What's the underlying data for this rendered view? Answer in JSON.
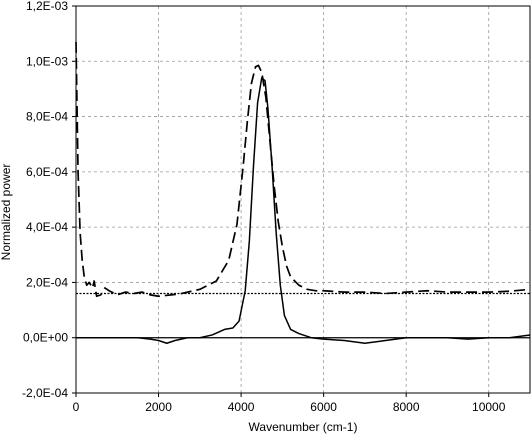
{
  "chart_data": {
    "type": "line",
    "title": "",
    "xlabel": "Wavenumber (cm-1)",
    "ylabel": "Normalized power",
    "xlim": [
      0,
      11000
    ],
    "ylim": [
      -0.0002,
      0.0012
    ],
    "grid": true,
    "legend": "none",
    "x_ticks": [
      0,
      2000,
      4000,
      6000,
      8000,
      10000
    ],
    "x_tick_labels": [
      "0",
      "2000",
      "4000",
      "6000",
      "8000",
      "10000"
    ],
    "y_ticks": [
      -0.0002,
      0.0,
      0.0002,
      0.0004,
      0.0006,
      0.0008,
      0.001,
      0.0012
    ],
    "y_tick_labels": [
      "-2,0E-04",
      "0,0E+00",
      "2,0E-04",
      "4,0E-04",
      "6,0E-04",
      "8,0E-04",
      "1,0E-03",
      "1,2E-03"
    ],
    "series": [
      {
        "style": "dashed",
        "x": [
          0,
          50,
          100,
          150,
          200,
          260,
          320,
          400,
          440,
          500,
          600,
          700,
          800,
          1000,
          1200,
          1400,
          1600,
          1800,
          2000,
          2500,
          3000,
          3400,
          3700,
          3900,
          4050,
          4150,
          4250,
          4350,
          4420,
          4500,
          4600,
          4700,
          4800,
          4900,
          5000,
          5100,
          5200,
          5400,
          5600,
          5800,
          6000,
          6500,
          7000,
          7500,
          8000,
          8500,
          9000,
          9500,
          10000,
          10500,
          11000
        ],
        "y": [
          0.00107,
          0.0006,
          0.00038,
          0.00028,
          0.00022,
          0.00019,
          0.0002,
          0.00018,
          0.000205,
          0.00015,
          0.000155,
          0.00018,
          0.00017,
          0.000155,
          0.000165,
          0.00016,
          0.000165,
          0.000155,
          0.00015,
          0.000158,
          0.000175,
          0.000205,
          0.00028,
          0.00041,
          0.00062,
          0.00078,
          0.00092,
          0.00098,
          0.000985,
          0.00096,
          0.00087,
          0.00071,
          0.00055,
          0.00042,
          0.00033,
          0.00026,
          0.00022,
          0.00019,
          0.000175,
          0.00017,
          0.00017,
          0.000165,
          0.000165,
          0.00016,
          0.000165,
          0.00017,
          0.000165,
          0.000165,
          0.000165,
          0.000168,
          0.000175
        ]
      },
      {
        "style": "solid",
        "x": [
          0,
          500,
          1000,
          1500,
          1800,
          2000,
          2200,
          2400,
          2700,
          3000,
          3300,
          3600,
          3800,
          3950,
          4100,
          4200,
          4300,
          4400,
          4500,
          4580,
          4650,
          4750,
          4850,
          4950,
          5050,
          5200,
          5400,
          5700,
          6000,
          6500,
          7000,
          7500,
          8000,
          8500,
          9000,
          9500,
          10000,
          10500,
          11000
        ],
        "y": [
          0.0,
          0.0,
          0.0,
          0.0,
          -5e-06,
          -1e-05,
          -2e-05,
          -1e-05,
          0.0,
          0.0,
          1e-05,
          3e-05,
          3.5e-05,
          6e-05,
          0.00017,
          0.00035,
          0.00062,
          0.00085,
          0.00094,
          0.00093,
          0.00083,
          0.00062,
          0.00038,
          0.00019,
          8e-05,
          3e-05,
          1.5e-05,
          0.0,
          -5e-06,
          -1e-05,
          -2e-05,
          -1e-05,
          0.0,
          0.0,
          0.0,
          -5e-06,
          0.0,
          0.0,
          1e-05
        ]
      },
      {
        "style": "dotted",
        "x": [
          0,
          11000
        ],
        "y": [
          0.00016,
          0.00016
        ]
      }
    ]
  }
}
